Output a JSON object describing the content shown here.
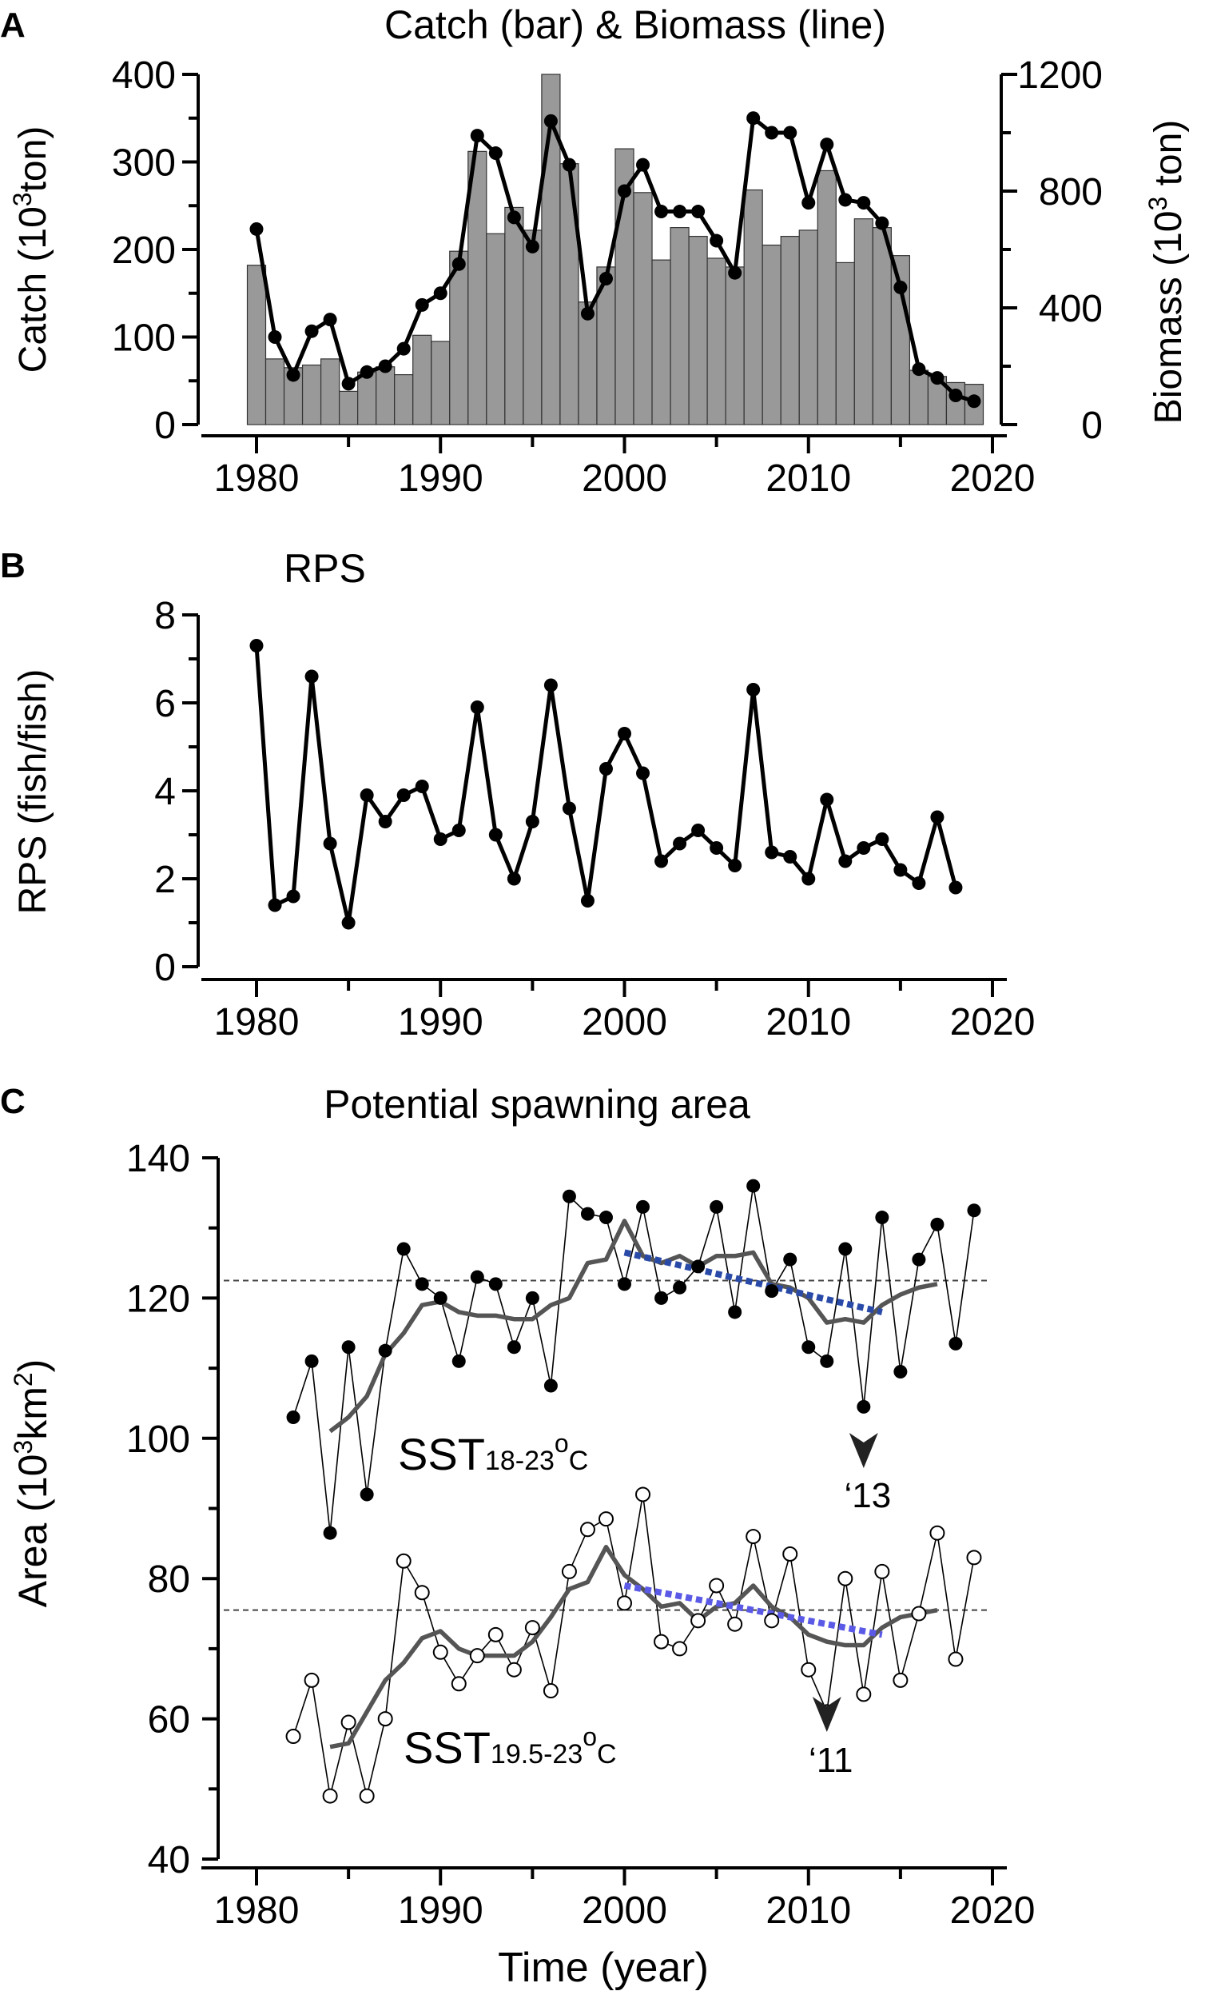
{
  "colors": {
    "axis": "#000000",
    "bar_fill": "#999999",
    "bar_stroke": "#333333",
    "dark_gray_line": "#555555",
    "blue_trend": "#2a4aa8",
    "purple_trend": "#5a5ae6",
    "reference_line": "#444444"
  },
  "chart_data": [
    {
      "id": "A",
      "type": "bar+line",
      "panel_label": "A",
      "title": "Catch (bar) & Biomass (line)",
      "xlabel": "",
      "xlim": [
        1978,
        2020
      ],
      "xticks": [
        1980,
        1990,
        2000,
        2010,
        2020
      ],
      "ylabel_left": {
        "prefix": "Catch (10",
        "sup": "3",
        "suffix": "ton)"
      },
      "ylim_left": [
        0,
        400
      ],
      "yticks_left": [
        0,
        100,
        200,
        300,
        400
      ],
      "ylabel_right": {
        "prefix": "Biomass (10",
        "sup": "3",
        "suffix": " ton)"
      },
      "ylim_right": [
        0,
        1200
      ],
      "yticks_right": [
        0,
        400,
        800,
        1200
      ],
      "years": [
        1980,
        1981,
        1982,
        1983,
        1984,
        1985,
        1986,
        1987,
        1988,
        1989,
        1990,
        1991,
        1992,
        1993,
        1994,
        1995,
        1996,
        1997,
        1998,
        1999,
        2000,
        2001,
        2002,
        2003,
        2004,
        2005,
        2006,
        2007,
        2008,
        2009,
        2010,
        2011,
        2012,
        2013,
        2014,
        2015,
        2016,
        2017,
        2018,
        2019
      ],
      "catch": [
        182,
        75,
        65,
        68,
        75,
        38,
        60,
        66,
        57,
        102,
        95,
        198,
        312,
        218,
        248,
        222,
        400,
        298,
        140,
        180,
        315,
        265,
        188,
        225,
        215,
        190,
        180,
        268,
        205,
        215,
        222,
        290,
        185,
        235,
        225,
        193,
        62,
        55,
        48,
        46
      ],
      "biomass": [
        670,
        300,
        170,
        320,
        360,
        140,
        180,
        200,
        260,
        410,
        450,
        550,
        990,
        930,
        710,
        610,
        1040,
        890,
        380,
        500,
        800,
        890,
        730,
        730,
        730,
        630,
        520,
        1050,
        1000,
        1000,
        760,
        960,
        770,
        760,
        690,
        470,
        190,
        160,
        100,
        80
      ]
    },
    {
      "id": "B",
      "type": "line",
      "panel_label": "B",
      "title": "RPS",
      "xlabel": "",
      "xlim": [
        1978,
        2020
      ],
      "xticks": [
        1980,
        1990,
        2000,
        2010,
        2020
      ],
      "ylabel": "RPS (fish/fish)",
      "ylim": [
        0,
        8
      ],
      "yticks": [
        0,
        2,
        4,
        6,
        8
      ],
      "years": [
        1980,
        1981,
        1982,
        1983,
        1984,
        1985,
        1986,
        1987,
        1988,
        1989,
        1990,
        1991,
        1992,
        1993,
        1994,
        1995,
        1996,
        1997,
        1998,
        1999,
        2000,
        2001,
        2002,
        2003,
        2004,
        2005,
        2006,
        2007,
        2008,
        2009,
        2010,
        2011,
        2012,
        2013,
        2014,
        2015,
        2016,
        2017,
        2018
      ],
      "values": [
        7.3,
        1.4,
        1.6,
        6.6,
        2.8,
        1.0,
        3.9,
        3.3,
        3.9,
        4.1,
        2.9,
        3.1,
        5.9,
        3.0,
        2.0,
        3.3,
        6.4,
        3.6,
        1.5,
        4.5,
        5.3,
        4.4,
        2.4,
        2.8,
        3.1,
        2.7,
        2.3,
        6.3,
        2.6,
        2.5,
        2.0,
        3.8,
        2.4,
        2.7,
        2.9,
        2.2,
        1.9,
        3.4,
        1.8
      ]
    },
    {
      "id": "C",
      "type": "line",
      "panel_label": "C",
      "title": "Potential spawning area",
      "xlabel": "Time (year)",
      "xlim": [
        1978,
        2020
      ],
      "xticks": [
        1980,
        1990,
        2000,
        2010,
        2020
      ],
      "ylabel": {
        "prefix": "Area (10",
        "sup1": "3",
        "mid": "km",
        "sup2": "2",
        "suffix": ")"
      },
      "ylim": [
        40,
        140
      ],
      "yticks": [
        40,
        60,
        80,
        100,
        120,
        140
      ],
      "series": [
        {
          "name": "SST18-23oC",
          "label": {
            "main": "SST",
            "sub": "18-23",
            "deg": "o",
            "unit": "C"
          },
          "marker": "filled",
          "years": [
            1982,
            1983,
            1984,
            1985,
            1986,
            1987,
            1988,
            1989,
            1990,
            1991,
            1992,
            1993,
            1994,
            1995,
            1996,
            1997,
            1998,
            1999,
            2000,
            2001,
            2002,
            2003,
            2004,
            2005,
            2006,
            2007,
            2008,
            2009,
            2010,
            2011,
            2012,
            2013,
            2014,
            2015,
            2016,
            2017,
            2018,
            2019
          ],
          "values": [
            103,
            111,
            86.5,
            113,
            92,
            112.5,
            127,
            122,
            120,
            111,
            123,
            122,
            113,
            120,
            107.5,
            134.5,
            132,
            131.5,
            122,
            133,
            120,
            121.5,
            124.5,
            133,
            118,
            136,
            121,
            125.5,
            113,
            111,
            127,
            104.5,
            131.5,
            109.5,
            125.5,
            130.5,
            113.5,
            132.5
          ],
          "moving_avg_years": [
            1984,
            1985,
            1986,
            1987,
            1988,
            1989,
            1990,
            1991,
            1992,
            1993,
            1994,
            1995,
            1996,
            1997,
            1998,
            1999,
            2000,
            2001,
            2002,
            2003,
            2004,
            2005,
            2006,
            2007,
            2008,
            2009,
            2010,
            2011,
            2012,
            2013,
            2014,
            2015,
            2016,
            2017
          ],
          "moving_avg": [
            101,
            103,
            106,
            112,
            115,
            119,
            119.5,
            118,
            117.5,
            117.5,
            117,
            117,
            119,
            120,
            125,
            125.5,
            131,
            126,
            125,
            126,
            124.5,
            126,
            126,
            126.5,
            122,
            121.5,
            120,
            116.5,
            117,
            116.5,
            119,
            120.5,
            121.5,
            122
          ],
          "trend": {
            "years": [
              2000,
              2014
            ],
            "values": [
              126.5,
              118
            ]
          },
          "reference": 122.5,
          "annotation": {
            "year": 2013,
            "text": "‘13"
          }
        },
        {
          "name": "SST19.5-23oC",
          "label": {
            "main": "SST",
            "sub": "19.5-23",
            "deg": "o",
            "unit": "C"
          },
          "marker": "open",
          "years": [
            1982,
            1983,
            1984,
            1985,
            1986,
            1987,
            1988,
            1989,
            1990,
            1991,
            1992,
            1993,
            1994,
            1995,
            1996,
            1997,
            1998,
            1999,
            2000,
            2001,
            2002,
            2003,
            2004,
            2005,
            2006,
            2007,
            2008,
            2009,
            2010,
            2011,
            2012,
            2013,
            2014,
            2015,
            2016,
            2017,
            2018,
            2019
          ],
          "values": [
            57.5,
            65.5,
            49,
            59.5,
            49,
            60,
            82.5,
            78,
            69.5,
            65,
            69,
            72,
            67,
            73,
            64,
            81,
            87,
            88.5,
            76.5,
            92,
            71,
            70,
            74,
            79,
            73.5,
            86,
            74,
            83.5,
            67,
            61,
            80,
            63.5,
            81,
            65.5,
            75,
            86.5,
            68.5,
            83
          ],
          "moving_avg_years": [
            1984,
            1985,
            1986,
            1987,
            1988,
            1989,
            1990,
            1991,
            1992,
            1993,
            1994,
            1995,
            1996,
            1997,
            1998,
            1999,
            2000,
            2001,
            2002,
            2003,
            2004,
            2005,
            2006,
            2007,
            2008,
            2009,
            2010,
            2011,
            2012,
            2013,
            2014,
            2015,
            2016,
            2017
          ],
          "moving_avg": [
            56,
            56.5,
            61,
            65.5,
            68,
            71.5,
            72.5,
            70,
            69,
            69,
            69,
            71,
            74.5,
            78.5,
            79.5,
            84.5,
            80.5,
            78.5,
            76,
            76.5,
            74,
            76,
            76.5,
            79,
            76,
            74.5,
            72,
            71,
            70.5,
            70.5,
            73,
            74.5,
            75,
            75.5
          ],
          "trend": {
            "years": [
              2000,
              2014
            ],
            "values": [
              79,
              72
            ]
          },
          "reference": 75.5,
          "annotation": {
            "year": 2011,
            "text": "‘11"
          }
        }
      ]
    }
  ]
}
